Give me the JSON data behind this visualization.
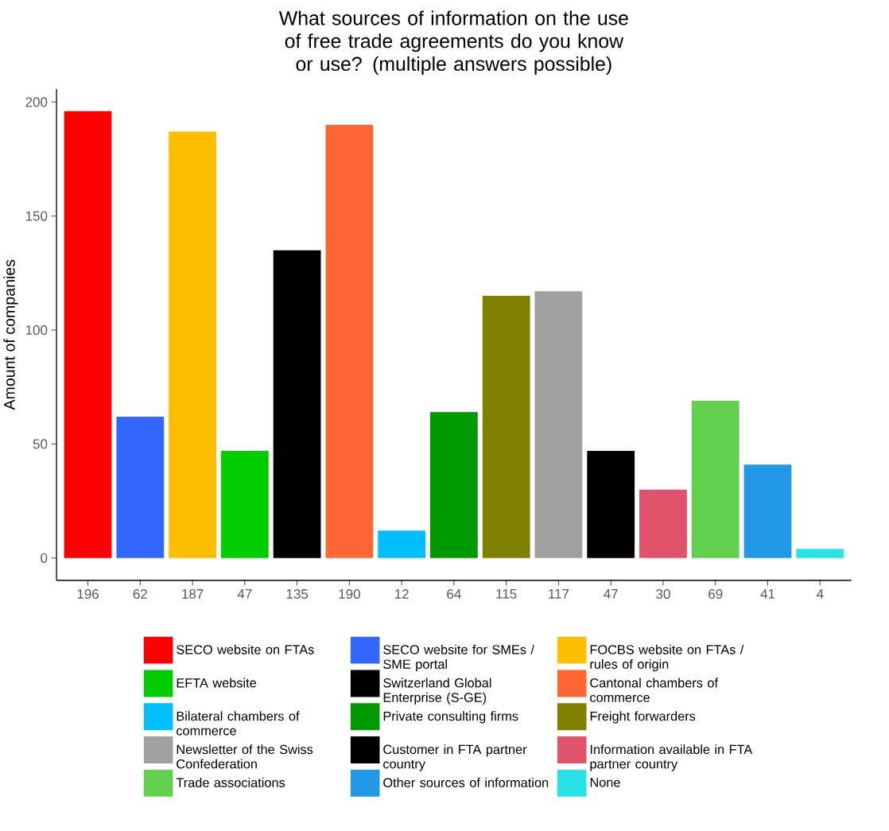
{
  "chart_data": {
    "type": "bar",
    "title": "What sources of information on the use of free trade agreements do you know or use? (multiple answers possible)",
    "ylabel": "Amount of companies",
    "categories": [
      "196",
      "62",
      "187",
      "47",
      "135",
      "190",
      "12",
      "64",
      "115",
      "117",
      "47",
      "30",
      "69",
      "41",
      "4"
    ],
    "series": [
      {
        "name": "SECO website on FTAs",
        "color": "#ff0000",
        "values": [
          196,
          null,
          null,
          null,
          null,
          null,
          null,
          null,
          null,
          null,
          null,
          null,
          null,
          null,
          null
        ]
      },
      {
        "name": "SECO website for SMEs / SME portal",
        "color": "#3366ff",
        "values": [
          null,
          62,
          null,
          null,
          null,
          null,
          null,
          null,
          null,
          null,
          null,
          null,
          null,
          null,
          null
        ]
      },
      {
        "name": "FOCBS website on FTAs / rules of origin",
        "color": "#ffbf00",
        "values": [
          null,
          null,
          187,
          null,
          null,
          null,
          null,
          null,
          null,
          null,
          null,
          null,
          null,
          null,
          null
        ]
      },
      {
        "name": "EFTA website",
        "color": "#00cc00",
        "values": [
          null,
          null,
          null,
          47,
          null,
          null,
          null,
          null,
          null,
          null,
          null,
          null,
          null,
          null,
          null
        ]
      },
      {
        "name": "Switzerland Global Enterprise (S-GE)",
        "color": "#000000",
        "values": [
          null,
          null,
          null,
          null,
          135,
          null,
          null,
          null,
          null,
          null,
          null,
          null,
          null,
          null,
          null
        ]
      },
      {
        "name": "Cantonal chambers of commerce",
        "color": "#ff6633",
        "values": [
          null,
          null,
          null,
          null,
          null,
          190,
          null,
          null,
          null,
          null,
          null,
          null,
          null,
          null,
          null
        ]
      },
      {
        "name": "Bilateral chambers of commerce",
        "color": "#00bfff",
        "values": [
          null,
          null,
          null,
          null,
          null,
          null,
          12,
          null,
          null,
          null,
          null,
          null,
          null,
          null,
          null
        ]
      },
      {
        "name": "Private consulting firms",
        "color": "#009900",
        "values": [
          null,
          null,
          null,
          null,
          null,
          null,
          null,
          64,
          null,
          null,
          null,
          null,
          null,
          null,
          null
        ]
      },
      {
        "name": "Freight forwarders",
        "color": "#808000",
        "values": [
          null,
          null,
          null,
          null,
          null,
          null,
          null,
          null,
          115,
          null,
          null,
          null,
          null,
          null,
          null
        ]
      },
      {
        "name": "Newsletter of the Swiss Confederation",
        "color": "#a0a0a0",
        "values": [
          null,
          null,
          null,
          null,
          null,
          null,
          null,
          null,
          null,
          117,
          null,
          null,
          null,
          null,
          null
        ]
      },
      {
        "name": "Customer in FTA partner country",
        "color": "#000000",
        "values": [
          null,
          null,
          null,
          null,
          null,
          null,
          null,
          null,
          null,
          null,
          47,
          null,
          null,
          null,
          null
        ]
      },
      {
        "name": "Information available in FTA partner country",
        "color": "#e0536b",
        "values": [
          null,
          null,
          null,
          null,
          null,
          null,
          null,
          null,
          null,
          null,
          null,
          30,
          null,
          null,
          null
        ]
      },
      {
        "name": "Trade associations",
        "color": "#61d04f",
        "values": [
          null,
          null,
          null,
          null,
          null,
          null,
          null,
          null,
          null,
          null,
          null,
          null,
          69,
          null,
          null
        ]
      },
      {
        "name": "Other sources of information",
        "color": "#2297e6",
        "values": [
          null,
          null,
          null,
          null,
          null,
          null,
          null,
          null,
          null,
          null,
          null,
          null,
          null,
          41,
          null
        ]
      },
      {
        "name": "None",
        "color": "#28e2e5",
        "values": [
          null,
          null,
          null,
          null,
          null,
          null,
          null,
          null,
          null,
          null,
          null,
          null,
          null,
          null,
          4
        ]
      }
    ],
    "ylim": [
      -9.8,
      205.8
    ],
    "yticks": [
      0,
      50,
      100,
      150,
      200
    ],
    "legend": "bottom"
  }
}
